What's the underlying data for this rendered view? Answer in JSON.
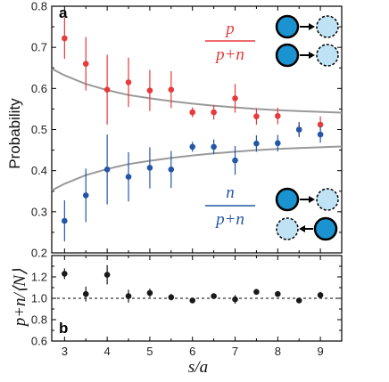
{
  "chart_data": [
    {
      "panel_label": "a",
      "type": "scatter",
      "ylabel": "Probability",
      "xlim": [
        2.7,
        9.5
      ],
      "ylim": [
        0.2,
        0.8
      ],
      "yticks": [
        "0.2",
        "0.3",
        "0.4",
        "0.5",
        "0.6",
        "0.7",
        "0.8"
      ],
      "series": [
        {
          "color": "#e8393c",
          "x": [
            3.0,
            3.5,
            4.0,
            4.5,
            5.0,
            5.5,
            6.0,
            6.5,
            7.0,
            7.5,
            8.0,
            8.5,
            9.0
          ],
          "y": [
            0.722,
            0.66,
            0.597,
            0.615,
            0.595,
            0.597,
            0.542,
            0.542,
            0.576,
            0.532,
            0.533,
            0.5,
            0.512
          ],
          "err": [
            0.05,
            0.065,
            0.085,
            0.06,
            0.05,
            0.045,
            0.012,
            0.018,
            0.035,
            0.02,
            0.02,
            0.018,
            0.02
          ]
        },
        {
          "color": "#2456a8",
          "x": [
            3.0,
            3.5,
            4.0,
            4.5,
            5.0,
            5.5,
            6.0,
            6.5,
            7.0,
            7.5,
            8.0,
            8.5,
            9.0
          ],
          "y": [
            0.278,
            0.34,
            0.403,
            0.385,
            0.407,
            0.403,
            0.458,
            0.458,
            0.425,
            0.466,
            0.467,
            0.5,
            0.488
          ],
          "err": [
            0.05,
            0.065,
            0.085,
            0.06,
            0.05,
            0.045,
            0.012,
            0.018,
            0.035,
            0.02,
            0.02,
            0.018,
            0.02
          ]
        }
      ],
      "curves_color": "#999999",
      "curve_upper": {
        "x": [
          2.7,
          3.0,
          3.5,
          4.0,
          4.5,
          5.0,
          5.5,
          6.0,
          6.5,
          7.0,
          7.5,
          8.0,
          8.5,
          9.0,
          9.5
        ],
        "y": [
          0.648,
          0.632,
          0.611,
          0.596,
          0.584,
          0.576,
          0.569,
          0.563,
          0.558,
          0.554,
          0.55,
          0.547,
          0.545,
          0.543,
          0.541
        ]
      },
      "curve_lower": {
        "x": [
          2.7,
          3.0,
          3.5,
          4.0,
          4.5,
          5.0,
          5.5,
          6.0,
          6.5,
          7.0,
          7.5,
          8.0,
          8.5,
          9.0,
          9.5
        ],
        "y": [
          0.352,
          0.368,
          0.389,
          0.404,
          0.416,
          0.424,
          0.431,
          0.437,
          0.442,
          0.446,
          0.45,
          0.453,
          0.455,
          0.457,
          0.459
        ]
      },
      "annotations": {
        "p_numerator": "p",
        "p_denominator": "p+n",
        "n_numerator": "n",
        "n_denominator": "p+n"
      },
      "icon_colors": {
        "filled": "#1a93d0",
        "light": "#bfe3f5"
      }
    },
    {
      "panel_label": "b",
      "type": "scatter",
      "xlabel": "s/a",
      "ylabel": "p+n/⟨N⟩",
      "xlim": [
        2.7,
        9.5
      ],
      "ylim": [
        0.6,
        1.4
      ],
      "yticks": [
        "0.6",
        "0.8",
        "1.0",
        "1.2"
      ],
      "xticks": [
        "3",
        "4",
        "5",
        "6",
        "7",
        "8",
        "9"
      ],
      "reference_line": 1.0,
      "series": [
        {
          "color": "#1a1a1a",
          "x": [
            3.0,
            3.5,
            4.0,
            4.5,
            5.0,
            5.5,
            6.0,
            6.5,
            7.0,
            7.5,
            8.0,
            8.5,
            9.0
          ],
          "y": [
            1.23,
            1.04,
            1.22,
            1.02,
            1.05,
            1.01,
            0.98,
            1.02,
            0.99,
            1.06,
            1.04,
            0.98,
            1.03
          ],
          "err": [
            0.05,
            0.07,
            0.09,
            0.06,
            0.04,
            0.03,
            0.015,
            0.02,
            0.04,
            0.02,
            0.02,
            0.02,
            0.03
          ]
        }
      ]
    }
  ]
}
